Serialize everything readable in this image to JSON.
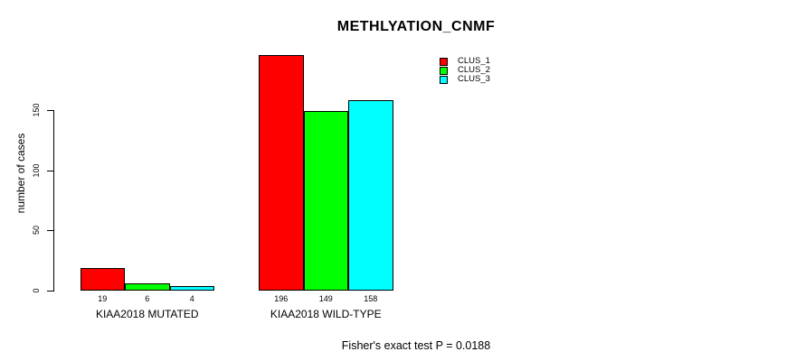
{
  "chart_data": {
    "type": "bar",
    "title": "METHLYATION_CNMF",
    "ylabel": "number of cases",
    "xlabel": "",
    "categories": [
      "KIAA2018 MUTATED",
      "KIAA2018 WILD-TYPE"
    ],
    "series": [
      {
        "name": "CLUS_1",
        "color": "#ff0000",
        "values": [
          19,
          196
        ]
      },
      {
        "name": "CLUS_2",
        "color": "#00ff00",
        "values": [
          6,
          149
        ]
      },
      {
        "name": "CLUS_3",
        "color": "#00ffff",
        "values": [
          4,
          158
        ]
      }
    ],
    "bar_value_labels": [
      [
        "19",
        "6",
        "4"
      ],
      [
        "196",
        "149",
        "158"
      ]
    ],
    "yticks": [
      0,
      50,
      100,
      150
    ],
    "ylim": [
      0,
      200
    ],
    "grid": false,
    "legend_position": "top-right",
    "legend_entries": [
      "CLUS_1",
      "CLUS_2",
      "CLUS_3"
    ],
    "annotation": "Fisher's exact test P = 0.0188"
  },
  "colors": {
    "clus_1": "#ff0000",
    "clus_2": "#00ff00",
    "clus_3": "#00ffff",
    "axis": "#000000",
    "background": "#ffffff"
  }
}
